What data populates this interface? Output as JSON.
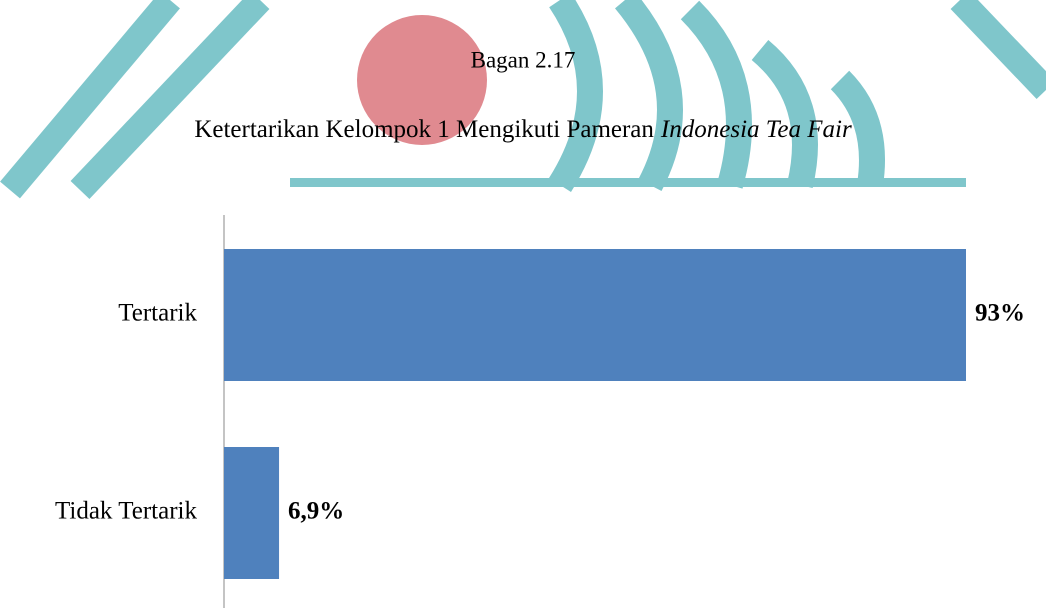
{
  "chart_data": {
    "type": "bar",
    "orientation": "horizontal",
    "title": "Bagan 2.17",
    "subtitle": [
      "Ketertarikan Kelompok 1 Mengikuti Pameran",
      "Indonesia Tea Fair"
    ],
    "categories": [
      "Tertarik",
      "Tidak Tertarik"
    ],
    "values": [
      93,
      6.9
    ],
    "value_labels": [
      "93%",
      "6,9%"
    ],
    "color": "#4f81bd"
  }
}
